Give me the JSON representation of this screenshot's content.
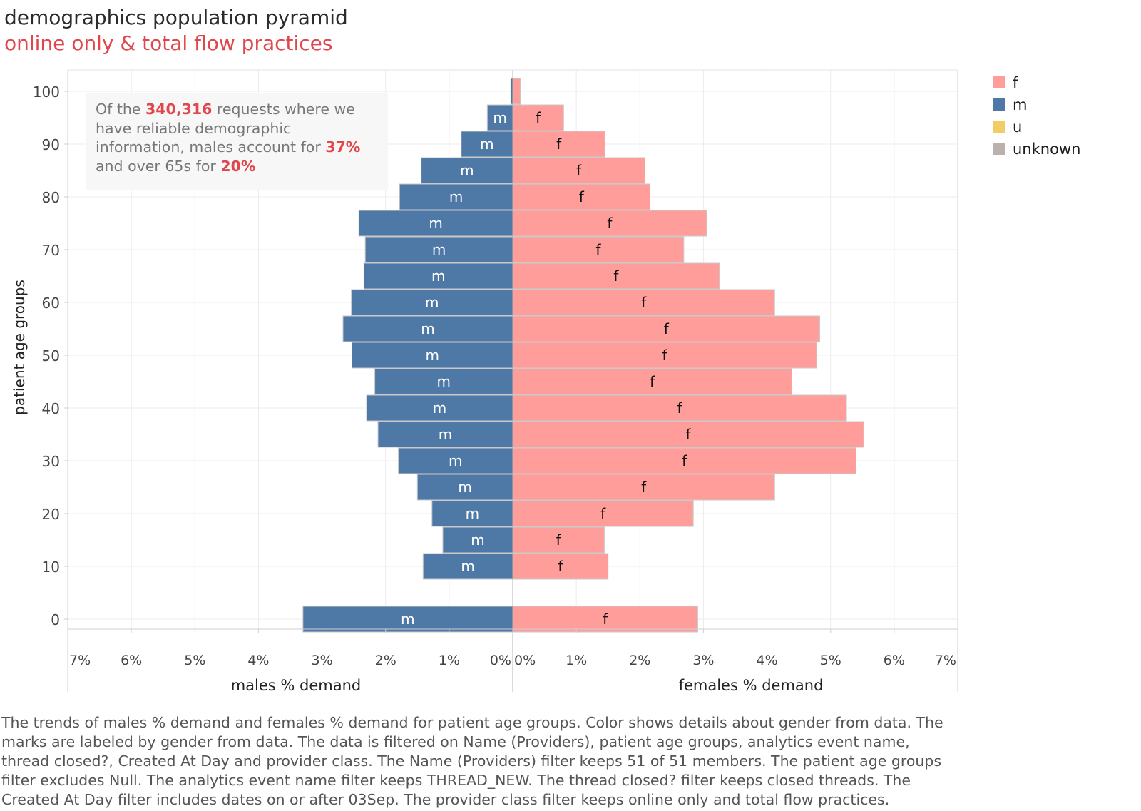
{
  "title": "demographics population pyramid",
  "subtitle": "online only & total flow practices",
  "annotation": {
    "pre1": "Of the ",
    "requests": "340,316",
    "post1": " requests where we",
    "line2": "have reliable demographic",
    "line3_pre": "information, males account for ",
    "males_pct": "37%",
    "line4_pre": "and over 65s for ",
    "over65_pct": "20%"
  },
  "legend": [
    {
      "label": "f",
      "color": "#ff9d9a"
    },
    {
      "label": "m",
      "color": "#4e79a7"
    },
    {
      "label": "u",
      "color": "#f1ce63"
    },
    {
      "label": "unknown",
      "color": "#bab0ac"
    }
  ],
  "caption_lines": [
    "The trends of males % demand and females % demand for patient age groups.  Color shows details about gender from data.  The",
    "marks are labeled by gender from data. The data is filtered on Name (Providers), patient age groups, analytics event name,",
    "thread closed?, Created At Day and provider class. The Name (Providers) filter keeps 51 of 51 members. The patient age groups",
    "filter excludes Null. The analytics event name filter keeps THREAD_NEW. The thread closed? filter keeps closed threads. The",
    "Created At Day filter includes dates on or after 03Sep. The provider class filter keeps online only and total flow practices."
  ],
  "chart_data": {
    "type": "bar",
    "ylabel": "patient age groups",
    "y_ticks": [
      0,
      10,
      20,
      30,
      40,
      50,
      60,
      70,
      80,
      90,
      100
    ],
    "xlim_percent": [
      0,
      7
    ],
    "x_ticks_left": [
      "7%",
      "6%",
      "5%",
      "4%",
      "3%",
      "2%",
      "1%",
      "0%"
    ],
    "x_ticks_right": [
      "0%",
      "1%",
      "2%",
      "3%",
      "4%",
      "5%",
      "6%",
      "7%"
    ],
    "males_axis_label": "males % demand",
    "females_axis_label": "females % demand",
    "age_groups": [
      0,
      10,
      15,
      20,
      25,
      30,
      35,
      40,
      45,
      50,
      55,
      60,
      65,
      70,
      75,
      80,
      85,
      90,
      95,
      100
    ],
    "series": [
      {
        "name": "m",
        "side": "left",
        "mark_label": "m",
        "color": "#4e79a7",
        "values": [
          3.3,
          1.41,
          1.1,
          1.27,
          1.5,
          1.8,
          2.12,
          2.3,
          2.17,
          2.53,
          2.67,
          2.54,
          2.34,
          2.32,
          2.42,
          1.78,
          1.44,
          0.81,
          0.4,
          0.03
        ]
      },
      {
        "name": "f",
        "side": "right",
        "mark_label": "f",
        "color": "#ff9d9a",
        "values": [
          2.91,
          1.5,
          1.44,
          2.84,
          4.12,
          5.4,
          5.52,
          5.25,
          4.39,
          4.78,
          4.83,
          4.12,
          3.25,
          2.69,
          3.05,
          2.16,
          2.08,
          1.45,
          0.8,
          0.12
        ]
      }
    ]
  }
}
